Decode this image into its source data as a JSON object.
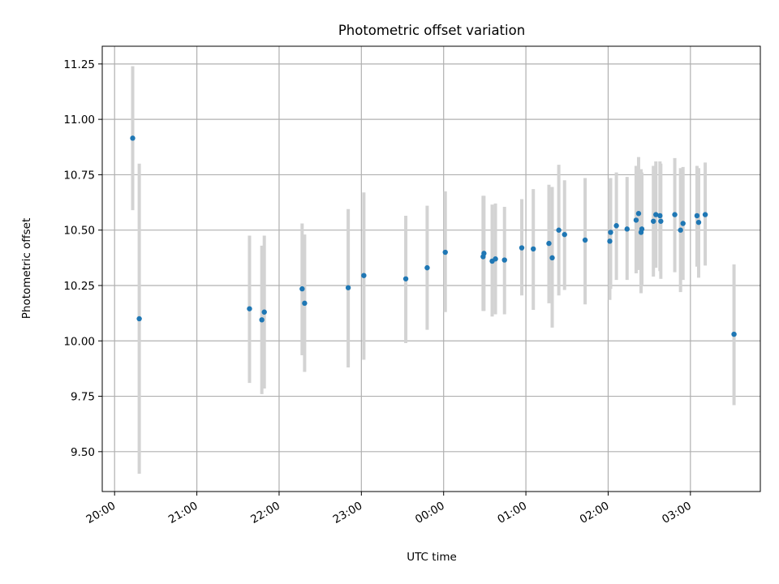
{
  "chart_data": {
    "type": "scatter",
    "title": "Photometric offset variation",
    "xlabel": "UTC time",
    "ylabel": "Photometric offset",
    "x_unit": "hours relative to 00:00 UTC",
    "xlim": [
      -4.15,
      3.85
    ],
    "ylim": [
      9.32,
      11.33
    ],
    "x_ticks": [
      {
        "value": -4,
        "label": "20:00"
      },
      {
        "value": -3,
        "label": "21:00"
      },
      {
        "value": -2,
        "label": "22:00"
      },
      {
        "value": -1,
        "label": "23:00"
      },
      {
        "value": 0,
        "label": "00:00"
      },
      {
        "value": 1,
        "label": "01:00"
      },
      {
        "value": 2,
        "label": "02:00"
      },
      {
        "value": 3,
        "label": "03:00"
      }
    ],
    "y_ticks": [
      {
        "value": 9.5,
        "label": "9.50"
      },
      {
        "value": 9.75,
        "label": "9.75"
      },
      {
        "value": 10.0,
        "label": "10.00"
      },
      {
        "value": 10.25,
        "label": "10.25"
      },
      {
        "value": 10.5,
        "label": "10.50"
      },
      {
        "value": 10.75,
        "label": "10.75"
      },
      {
        "value": 11.0,
        "label": "11.00"
      },
      {
        "value": 11.25,
        "label": "11.25"
      }
    ],
    "grid": true,
    "point_color": "#1f77b4",
    "errorbar_color": "#d3d3d3",
    "points": [
      {
        "x": -3.78,
        "y": 10.915,
        "lo": 10.59,
        "hi": 11.24
      },
      {
        "x": -3.7,
        "y": 10.1,
        "lo": 9.4,
        "hi": 10.8
      },
      {
        "x": -2.36,
        "y": 10.145,
        "lo": 9.81,
        "hi": 10.475
      },
      {
        "x": -2.21,
        "y": 10.095,
        "lo": 9.76,
        "hi": 10.43
      },
      {
        "x": -2.18,
        "y": 10.13,
        "lo": 9.785,
        "hi": 10.475
      },
      {
        "x": -1.72,
        "y": 10.235,
        "lo": 9.935,
        "hi": 10.53
      },
      {
        "x": -1.69,
        "y": 10.17,
        "lo": 9.86,
        "hi": 10.48
      },
      {
        "x": -1.16,
        "y": 10.24,
        "lo": 9.88,
        "hi": 10.595
      },
      {
        "x": -0.97,
        "y": 10.295,
        "lo": 9.915,
        "hi": 10.67
      },
      {
        "x": -0.46,
        "y": 10.28,
        "lo": 9.99,
        "hi": 10.565
      },
      {
        "x": -0.2,
        "y": 10.33,
        "lo": 10.05,
        "hi": 10.61
      },
      {
        "x": 0.02,
        "y": 10.4,
        "lo": 10.13,
        "hi": 10.675
      },
      {
        "x": 0.48,
        "y": 10.38,
        "lo": 10.135,
        "hi": 10.655
      },
      {
        "x": 0.49,
        "y": 10.395,
        "lo": 10.135,
        "hi": 10.655
      },
      {
        "x": 0.59,
        "y": 10.36,
        "lo": 10.11,
        "hi": 10.615
      },
      {
        "x": 0.63,
        "y": 10.37,
        "lo": 10.12,
        "hi": 10.62
      },
      {
        "x": 0.74,
        "y": 10.365,
        "lo": 10.12,
        "hi": 10.605
      },
      {
        "x": 0.95,
        "y": 10.42,
        "lo": 10.205,
        "hi": 10.64
      },
      {
        "x": 1.09,
        "y": 10.415,
        "lo": 10.14,
        "hi": 10.685
      },
      {
        "x": 1.28,
        "y": 10.44,
        "lo": 10.17,
        "hi": 10.705
      },
      {
        "x": 1.32,
        "y": 10.375,
        "lo": 10.06,
        "hi": 10.695
      },
      {
        "x": 1.4,
        "y": 10.5,
        "lo": 10.205,
        "hi": 10.795
      },
      {
        "x": 1.47,
        "y": 10.48,
        "lo": 10.23,
        "hi": 10.725
      },
      {
        "x": 1.72,
        "y": 10.455,
        "lo": 10.165,
        "hi": 10.735
      },
      {
        "x": 2.02,
        "y": 10.45,
        "lo": 10.185,
        "hi": 10.73
      },
      {
        "x": 2.03,
        "y": 10.49,
        "lo": 10.235,
        "hi": 10.735
      },
      {
        "x": 2.1,
        "y": 10.52,
        "lo": 10.275,
        "hi": 10.76
      },
      {
        "x": 2.23,
        "y": 10.505,
        "lo": 10.275,
        "hi": 10.74
      },
      {
        "x": 2.34,
        "y": 10.545,
        "lo": 10.305,
        "hi": 10.79
      },
      {
        "x": 2.37,
        "y": 10.575,
        "lo": 10.32,
        "hi": 10.83
      },
      {
        "x": 2.4,
        "y": 10.49,
        "lo": 10.215,
        "hi": 10.775
      },
      {
        "x": 2.41,
        "y": 10.505,
        "lo": 10.25,
        "hi": 10.76
      },
      {
        "x": 2.55,
        "y": 10.54,
        "lo": 10.29,
        "hi": 10.79
      },
      {
        "x": 2.58,
        "y": 10.57,
        "lo": 10.33,
        "hi": 10.81
      },
      {
        "x": 2.63,
        "y": 10.565,
        "lo": 10.315,
        "hi": 10.81
      },
      {
        "x": 2.64,
        "y": 10.54,
        "lo": 10.28,
        "hi": 10.8
      },
      {
        "x": 2.81,
        "y": 10.57,
        "lo": 10.31,
        "hi": 10.825
      },
      {
        "x": 2.88,
        "y": 10.5,
        "lo": 10.22,
        "hi": 10.78
      },
      {
        "x": 2.91,
        "y": 10.53,
        "lo": 10.275,
        "hi": 10.785
      },
      {
        "x": 3.08,
        "y": 10.565,
        "lo": 10.335,
        "hi": 10.79
      },
      {
        "x": 3.1,
        "y": 10.535,
        "lo": 10.285,
        "hi": 10.78
      },
      {
        "x": 3.18,
        "y": 10.57,
        "lo": 10.34,
        "hi": 10.805
      },
      {
        "x": 3.53,
        "y": 10.03,
        "lo": 9.71,
        "hi": 10.345
      }
    ]
  }
}
